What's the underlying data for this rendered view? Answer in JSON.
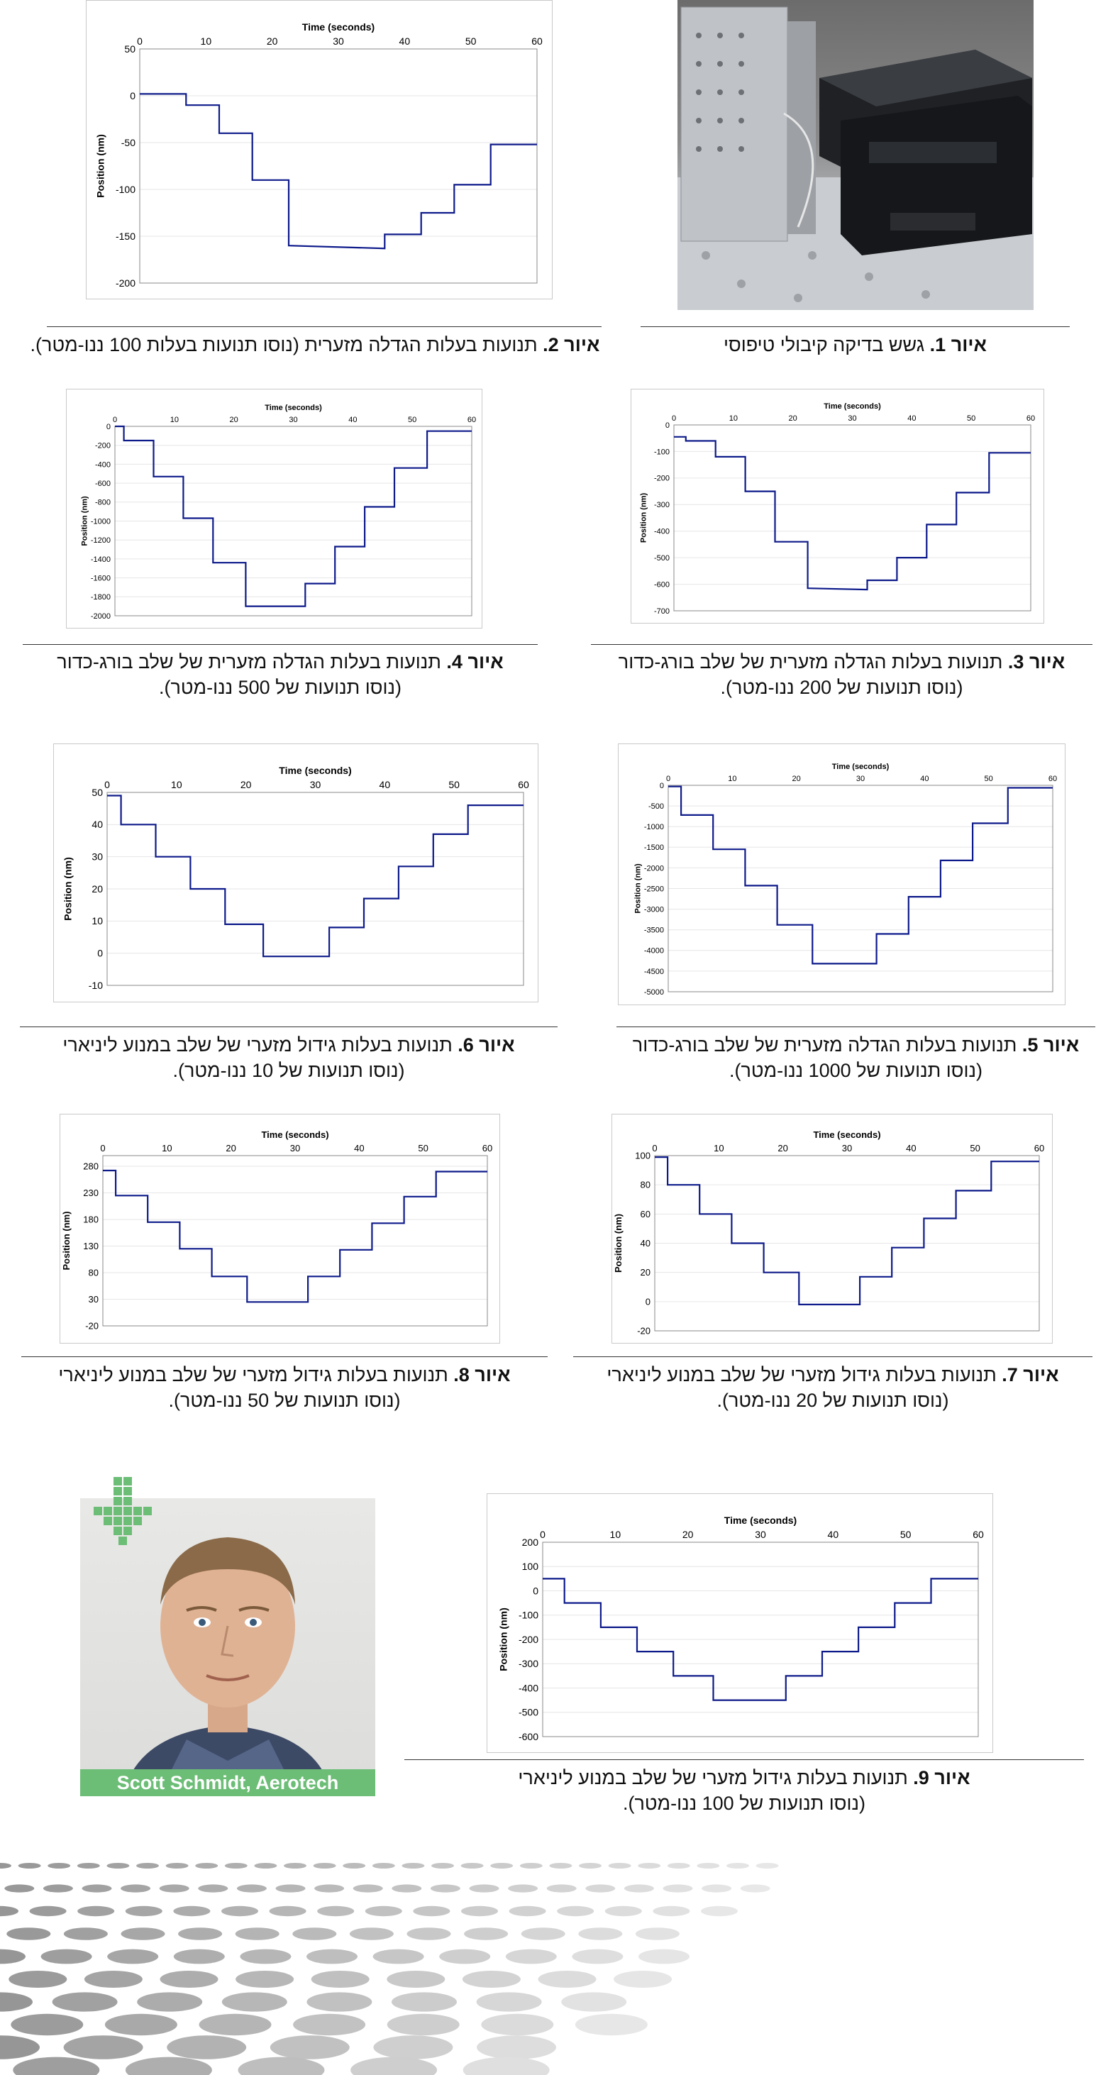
{
  "captions": {
    "fig1": {
      "label": "איור 1.",
      "text": " גשש בדיקה קיבולי טיפוסי"
    },
    "fig2": {
      "label": "איור 2.",
      "text": " תנועות בעלות הגדלה מזערית (נוסו תנועות בעלות 100 ננו-מטר)."
    },
    "fig3": {
      "label": "איור 3.",
      "text": " תנועות בעלות הגדלה מזערית של שלב בורג-כדור",
      "line2": "(נוסו תנועות של 200 ננו-מטר)."
    },
    "fig4": {
      "label": "איור 4.",
      "text": " תנועות בעלות הגדלה מזערית של שלב בורג-כדור",
      "line2": "(נוסו תנועות של 500 ננו-מטר)."
    },
    "fig5": {
      "label": "איור 5.",
      "text": " תנועות בעלות הגדלה מזערית של שלב בורג-כדור",
      "line2": "(נוסו תנועות של 1000 ננו-מטר)."
    },
    "fig6": {
      "label": "איור 6.",
      "text": " תנועות בעלות גידול מזערי של שלב במנוע ליניארי",
      "line2": "(נוסו תנועות של 10 ננו-מטר)."
    },
    "fig7": {
      "label": "איור 7.",
      "text": " תנועות בעלות גידול מזערי של שלב במנוע ליניארי",
      "line2": "(נוסו תנועות של 20 ננו-מטר)."
    },
    "fig8": {
      "label": "איור 8.",
      "text": " תנועות בעלות גידול מזערי של שלב במנוע ליניארי",
      "line2": "(נוסו תנועות של 50 ננו-מטר)."
    },
    "fig9": {
      "label": "איור 9.",
      "text": " תנועות בעלות גידול מזערי של שלב במנוע ליניארי",
      "line2": "(נוסו תנועות של 100 ננו-מטר)."
    }
  },
  "author": {
    "name": "Scott Schmidt, Aerotech"
  },
  "colors": {
    "trace": "#0d1a8a",
    "accent_green": "#6cbd76",
    "grid": "#e6e6e6"
  },
  "chart_data": [
    {
      "id": "fig2",
      "type": "line",
      "xlabel": "Time (seconds)",
      "ylabel": "Position (nm)",
      "xlim": [
        0,
        60
      ],
      "xticks": [
        0,
        10,
        20,
        30,
        40,
        50,
        60
      ],
      "ylim": [
        -200,
        50
      ],
      "yticks": [
        50,
        0,
        -50,
        -100,
        -150,
        -200
      ],
      "x": [
        0,
        7,
        7,
        12,
        12,
        17,
        17,
        22.5,
        22.5,
        37,
        37,
        42.5,
        42.5,
        47.5,
        47.5,
        53,
        53,
        60
      ],
      "y": [
        2,
        2,
        -10,
        -10,
        -40,
        -40,
        -90,
        -90,
        -160,
        -163,
        -148,
        -148,
        -125,
        -125,
        -95,
        -95,
        -52,
        -52
      ]
    },
    {
      "id": "fig3",
      "type": "line",
      "xlabel": "Time (seconds)",
      "ylabel": "Position (nm)",
      "xlim": [
        0,
        60
      ],
      "xticks": [
        0,
        10,
        20,
        30,
        40,
        50,
        60
      ],
      "ylim": [
        -700,
        0
      ],
      "yticks": [
        0,
        -100,
        -200,
        -300,
        -400,
        -500,
        -600,
        -700
      ],
      "x": [
        0,
        2,
        2,
        7,
        7,
        12,
        12,
        17,
        17,
        22.5,
        22.5,
        32.5,
        32.5,
        37.5,
        37.5,
        42.5,
        42.5,
        47.5,
        47.5,
        53,
        53,
        60
      ],
      "y": [
        -45,
        -45,
        -60,
        -60,
        -120,
        -120,
        -250,
        -250,
        -440,
        -440,
        -615,
        -620,
        -585,
        -585,
        -500,
        -500,
        -375,
        -375,
        -255,
        -255,
        -105,
        -105
      ]
    },
    {
      "id": "fig4",
      "type": "line",
      "xlabel": "Time (seconds)",
      "ylabel": "Position (nm)",
      "xlim": [
        0,
        60
      ],
      "xticks": [
        0,
        10,
        20,
        30,
        40,
        50,
        60
      ],
      "ylim": [
        -2000,
        0
      ],
      "yticks": [
        0,
        -200,
        -400,
        -600,
        -800,
        -1000,
        -1200,
        -1400,
        -1600,
        -1800,
        -2000
      ],
      "x": [
        0,
        1.5,
        1.5,
        6.5,
        6.5,
        11.5,
        11.5,
        16.5,
        16.5,
        22,
        22,
        32,
        32,
        37,
        37,
        42,
        42,
        47,
        47,
        52.5,
        52.5,
        60
      ],
      "y": [
        0,
        0,
        -150,
        -150,
        -530,
        -530,
        -970,
        -970,
        -1440,
        -1440,
        -1900,
        -1900,
        -1660,
        -1660,
        -1270,
        -1270,
        -850,
        -850,
        -440,
        -440,
        -50,
        -50
      ]
    },
    {
      "id": "fig5",
      "type": "line",
      "xlabel": "Time (seconds)",
      "ylabel": "Position (nm)",
      "xlim": [
        0,
        60
      ],
      "xticks": [
        0,
        10,
        20,
        30,
        40,
        50,
        60
      ],
      "ylim": [
        -5000,
        0
      ],
      "yticks": [
        0,
        -500,
        -1000,
        -1500,
        -2000,
        -2500,
        -3000,
        -3500,
        -4000,
        -4500,
        -5000
      ],
      "x": [
        0,
        2,
        2,
        7,
        7,
        12,
        12,
        17,
        17,
        22.5,
        22.5,
        32.5,
        32.5,
        37.5,
        37.5,
        42.5,
        42.5,
        47.5,
        47.5,
        53,
        53,
        60
      ],
      "y": [
        -30,
        -30,
        -720,
        -720,
        -1550,
        -1550,
        -2430,
        -2430,
        -3380,
        -3380,
        -4320,
        -4320,
        -3600,
        -3600,
        -2700,
        -2700,
        -1820,
        -1820,
        -920,
        -920,
        -60,
        -60
      ]
    },
    {
      "id": "fig6",
      "type": "line",
      "xlabel": "Time (seconds)",
      "ylabel": "Position (nm)",
      "xlim": [
        0,
        60
      ],
      "xticks": [
        0,
        10,
        20,
        30,
        40,
        50,
        60
      ],
      "ylim": [
        -10,
        50
      ],
      "yticks": [
        50,
        40,
        30,
        20,
        10,
        0,
        -10
      ],
      "x": [
        0,
        2,
        2,
        7,
        7,
        12,
        12,
        17,
        17,
        22.5,
        22.5,
        32,
        32,
        37,
        37,
        42,
        42,
        47,
        47,
        52,
        52,
        60
      ],
      "y": [
        49,
        49,
        40,
        40,
        30,
        30,
        20,
        20,
        9,
        9,
        -1,
        -1,
        8,
        8,
        17,
        17,
        27,
        27,
        37,
        37,
        46,
        46
      ]
    },
    {
      "id": "fig7",
      "type": "line",
      "xlabel": "Time (seconds)",
      "ylabel": "Position (nm)",
      "xlim": [
        0,
        60
      ],
      "xticks": [
        0,
        10,
        20,
        30,
        40,
        50,
        60
      ],
      "ylim": [
        -20,
        100
      ],
      "yticks": [
        100,
        80,
        60,
        40,
        20,
        0,
        -20
      ],
      "x": [
        0,
        2,
        2,
        7,
        7,
        12,
        12,
        17,
        17,
        22.5,
        22.5,
        32,
        32,
        37,
        37,
        42,
        42,
        47,
        47,
        52.5,
        52.5,
        60
      ],
      "y": [
        99,
        99,
        80,
        80,
        60,
        60,
        40,
        40,
        20,
        20,
        -2,
        -2,
        17,
        17,
        37,
        37,
        57,
        57,
        76,
        76,
        96,
        96
      ]
    },
    {
      "id": "fig8",
      "type": "line",
      "xlabel": "Time (seconds)",
      "ylabel": "Position (nm)",
      "xlim": [
        0,
        60
      ],
      "xticks": [
        0,
        10,
        20,
        30,
        40,
        50,
        60
      ],
      "ylim": [
        -20,
        300
      ],
      "yticks": [
        280,
        230,
        180,
        130,
        80,
        30,
        -20
      ],
      "x": [
        0,
        2,
        2,
        7,
        7,
        12,
        12,
        17,
        17,
        22.5,
        22.5,
        32,
        32,
        37,
        37,
        42,
        42,
        47,
        47,
        52,
        52,
        60
      ],
      "y": [
        272,
        272,
        225,
        225,
        175,
        175,
        125,
        125,
        73,
        73,
        25,
        25,
        73,
        73,
        123,
        123,
        173,
        173,
        223,
        223,
        270,
        270
      ]
    },
    {
      "id": "fig9",
      "type": "line",
      "xlabel": "Time (seconds)",
      "ylabel": "Position (nm)",
      "xlim": [
        0,
        60
      ],
      "xticks": [
        0,
        10,
        20,
        30,
        40,
        50,
        60
      ],
      "ylim": [
        -600,
        200
      ],
      "yticks": [
        200,
        100,
        0,
        -100,
        -200,
        -300,
        -400,
        -500,
        -600
      ],
      "x": [
        0,
        3,
        3,
        8,
        8,
        13,
        13,
        18,
        18,
        23.5,
        23.5,
        33.5,
        33.5,
        38.5,
        38.5,
        43.5,
        43.5,
        48.5,
        48.5,
        53.5,
        53.5,
        60
      ],
      "y": [
        50,
        50,
        -50,
        -50,
        -150,
        -150,
        -250,
        -250,
        -350,
        -350,
        -450,
        -450,
        -350,
        -350,
        -250,
        -250,
        -150,
        -150,
        -50,
        -50,
        50,
        50
      ]
    }
  ]
}
